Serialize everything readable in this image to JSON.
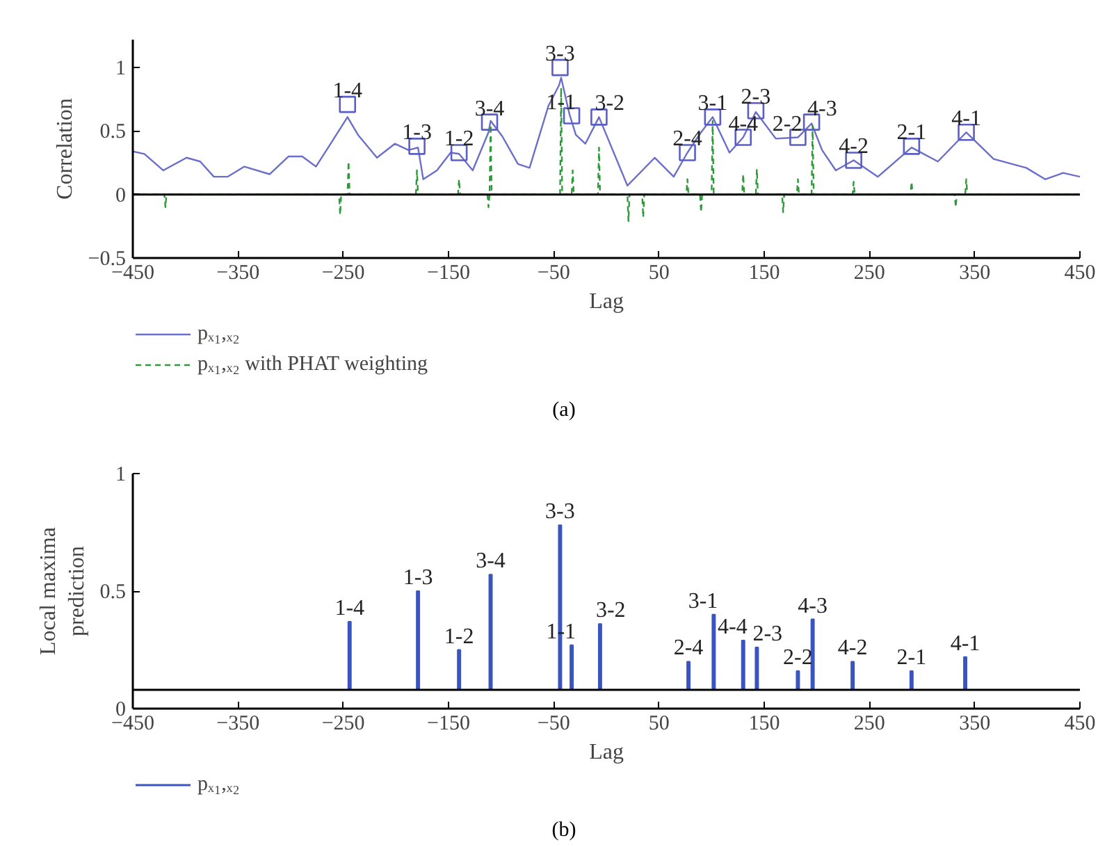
{
  "chart_data": [
    {
      "type": "line",
      "xlabel": "Lag",
      "ylabel": "Correlation",
      "xlim": [
        -450,
        450
      ],
      "ylim": [
        -0.5,
        1.22
      ],
      "xticks": [
        -450,
        -350,
        -250,
        -150,
        -50,
        50,
        150,
        250,
        350,
        450
      ],
      "yticks": [
        -0.5,
        0,
        0.5,
        1
      ],
      "grid": false,
      "legend": "bottom",
      "ref_lines": [
        {
          "axis": "y",
          "value": 0,
          "color": "#000000"
        }
      ],
      "series": [
        {
          "name": "pₓ₁,ₓ₂",
          "color": "#6b6fc9",
          "x": [
            -450,
            -439,
            -421,
            -399,
            -386,
            -373,
            -360,
            -344,
            -320,
            -302,
            -289,
            -276,
            -262,
            -246,
            -236,
            -218,
            -201,
            -188,
            -179,
            -174,
            -161,
            -148,
            -140,
            -127,
            -112,
            -110,
            -99,
            -84,
            -73,
            -55,
            -45,
            -43,
            -35,
            -29,
            -20,
            -7,
            20,
            46,
            64,
            77,
            90,
            101,
            117,
            130,
            142,
            161,
            182,
            195,
            205,
            218,
            235,
            258,
            290,
            315,
            342,
            368,
            399,
            417,
            434,
            450
          ],
          "values": [
            0.34,
            0.32,
            0.19,
            0.29,
            0.26,
            0.14,
            0.14,
            0.22,
            0.16,
            0.3,
            0.3,
            0.22,
            0.4,
            0.61,
            0.47,
            0.29,
            0.4,
            0.35,
            0.37,
            0.12,
            0.19,
            0.33,
            0.32,
            0.19,
            0.49,
            0.58,
            0.46,
            0.24,
            0.21,
            0.7,
            0.86,
            0.92,
            0.63,
            0.47,
            0.4,
            0.61,
            0.07,
            0.29,
            0.14,
            0.33,
            0.49,
            0.61,
            0.33,
            0.45,
            0.65,
            0.44,
            0.45,
            0.56,
            0.35,
            0.19,
            0.27,
            0.14,
            0.37,
            0.26,
            0.49,
            0.28,
            0.21,
            0.12,
            0.17,
            0.14
          ]
        },
        {
          "name": "pₓ₁,ₓ₂ with PHAT weighting",
          "color": "#2e9a3a",
          "line_style": "dashed",
          "x": [
            -450,
            -420,
            -419,
            -418,
            -254,
            -253,
            -252,
            -246,
            -245,
            -244,
            -181,
            -180,
            -179,
            -141,
            -140,
            -139,
            -113,
            -112,
            -111,
            -110,
            -109,
            -44,
            -43,
            -42,
            -33,
            -32,
            -31,
            -8,
            -7,
            -6,
            20,
            21,
            22,
            34,
            35,
            36,
            76,
            77,
            78,
            89,
            90,
            91,
            100,
            101,
            102,
            129,
            130,
            131,
            142,
            143,
            144,
            167,
            168,
            169,
            181,
            182,
            183,
            195,
            196,
            197,
            234,
            235,
            236,
            289,
            290,
            291,
            331,
            332,
            333,
            341,
            342,
            343,
            450
          ],
          "values": [
            0,
            0,
            -0.1,
            0,
            0,
            -0.16,
            0,
            0,
            0.26,
            0,
            0,
            0.19,
            0,
            0,
            0.12,
            0,
            0,
            -0.1,
            0,
            0.55,
            0,
            0,
            0.84,
            0,
            0,
            0.19,
            0,
            0,
            0.37,
            0,
            0,
            -0.21,
            0,
            0,
            -0.18,
            0,
            0,
            0.12,
            0,
            0,
            -0.14,
            0,
            0,
            0.58,
            0,
            0,
            0.16,
            0,
            0,
            0.2,
            0,
            0,
            -0.14,
            0,
            0,
            0.12,
            0,
            0,
            0.54,
            0,
            0,
            0.1,
            0,
            0,
            0.1,
            0,
            0,
            -0.1,
            0,
            0,
            0.12,
            0,
            0
          ]
        },
        {
          "type": "scatter",
          "marker": "square",
          "color": "#5a5fc8",
          "x": [
            -246,
            -180,
            -140,
            -111,
            -44,
            -33,
            -7,
            77,
            101,
            130,
            142,
            182,
            195,
            235,
            290,
            342
          ],
          "values": [
            0.71,
            0.38,
            0.33,
            0.57,
            1.0,
            0.62,
            0.61,
            0.33,
            0.61,
            0.45,
            0.66,
            0.45,
            0.57,
            0.27,
            0.38,
            0.49
          ]
        }
      ],
      "annotations": [
        {
          "text": "1-4",
          "x": -246,
          "y": 0.71
        },
        {
          "text": "1-3",
          "x": -180,
          "y": 0.38
        },
        {
          "text": "1-2",
          "x": -140,
          "y": 0.33
        },
        {
          "text": "3-4",
          "x": -111,
          "y": 0.57
        },
        {
          "text": "3-3",
          "x": -44,
          "y": 1.0
        },
        {
          "text": "1-1",
          "x": -33,
          "y": 0.62
        },
        {
          "text": "3-2",
          "x": -7,
          "y": 0.61
        },
        {
          "text": "2-4",
          "x": 77,
          "y": 0.33
        },
        {
          "text": "3-1",
          "x": 101,
          "y": 0.61
        },
        {
          "text": "4-4",
          "x": 130,
          "y": 0.45
        },
        {
          "text": "2-3",
          "x": 142,
          "y": 0.66
        },
        {
          "text": "2-2",
          "x": 182,
          "y": 0.45
        },
        {
          "text": "4-3",
          "x": 195,
          "y": 0.57
        },
        {
          "text": "4-2",
          "x": 235,
          "y": 0.27
        },
        {
          "text": "2-1",
          "x": 290,
          "y": 0.38
        },
        {
          "text": "4-1",
          "x": 342,
          "y": 0.49
        },
        "(a)"
      ]
    },
    {
      "type": "bar",
      "xlabel": "Lag",
      "ylabel": "Local maxima\nprediction",
      "xlim": [
        -450,
        450
      ],
      "ylim": [
        0,
        1
      ],
      "xticks": [
        -450,
        -350,
        -250,
        -150,
        -50,
        50,
        150,
        250,
        350,
        450
      ],
      "yticks": [
        0,
        0.5,
        1
      ],
      "grid": false,
      "legend": "bottom",
      "ref_lines": [
        {
          "axis": "y",
          "value": 0.08,
          "color": "#000000"
        }
      ],
      "x": [
        -244,
        -179,
        -140,
        -110,
        -44,
        -33,
        -6,
        78,
        102,
        130,
        143,
        182,
        196,
        234,
        290,
        341
      ],
      "series": [
        {
          "name": "pₓ₁,ₓ₂",
          "color": "#3a55bf",
          "base": [
            0.08,
            0.08,
            0.08,
            0.08,
            0.08,
            0.08,
            0.08,
            0.08,
            0.08,
            0.08,
            0.08,
            0.08,
            0.08,
            0.08,
            0.08,
            0.08
          ],
          "values": [
            0.29,
            0.42,
            0.17,
            0.49,
            0.7,
            0.19,
            0.28,
            0.12,
            0.32,
            0.21,
            0.18,
            0.08,
            0.3,
            0.12,
            0.08,
            0.14
          ]
        }
      ],
      "annotations": [
        {
          "text": "1-4",
          "x": -244,
          "y": 0.37
        },
        {
          "text": "1-3",
          "x": -179,
          "y": 0.5
        },
        {
          "text": "1-2",
          "x": -140,
          "y": 0.25
        },
        {
          "text": "3-4",
          "x": -110,
          "y": 0.57
        },
        {
          "text": "3-3",
          "x": -44,
          "y": 0.78
        },
        {
          "text": "1-1",
          "x": -33,
          "y": 0.27
        },
        {
          "text": "3-2",
          "x": -6,
          "y": 0.36
        },
        {
          "text": "2-4",
          "x": 78,
          "y": 0.2
        },
        {
          "text": "3-1",
          "x": 102,
          "y": 0.4
        },
        {
          "text": "4-4",
          "x": 130,
          "y": 0.29
        },
        {
          "text": "2-3",
          "x": 143,
          "y": 0.26
        },
        {
          "text": "2-2",
          "x": 182,
          "y": 0.16
        },
        {
          "text": "4-3",
          "x": 196,
          "y": 0.38
        },
        {
          "text": "4-2",
          "x": 234,
          "y": 0.2
        },
        {
          "text": "2-1",
          "x": 290,
          "y": 0.16
        },
        {
          "text": "4-1",
          "x": 341,
          "y": 0.22
        },
        "(b)"
      ]
    }
  ]
}
